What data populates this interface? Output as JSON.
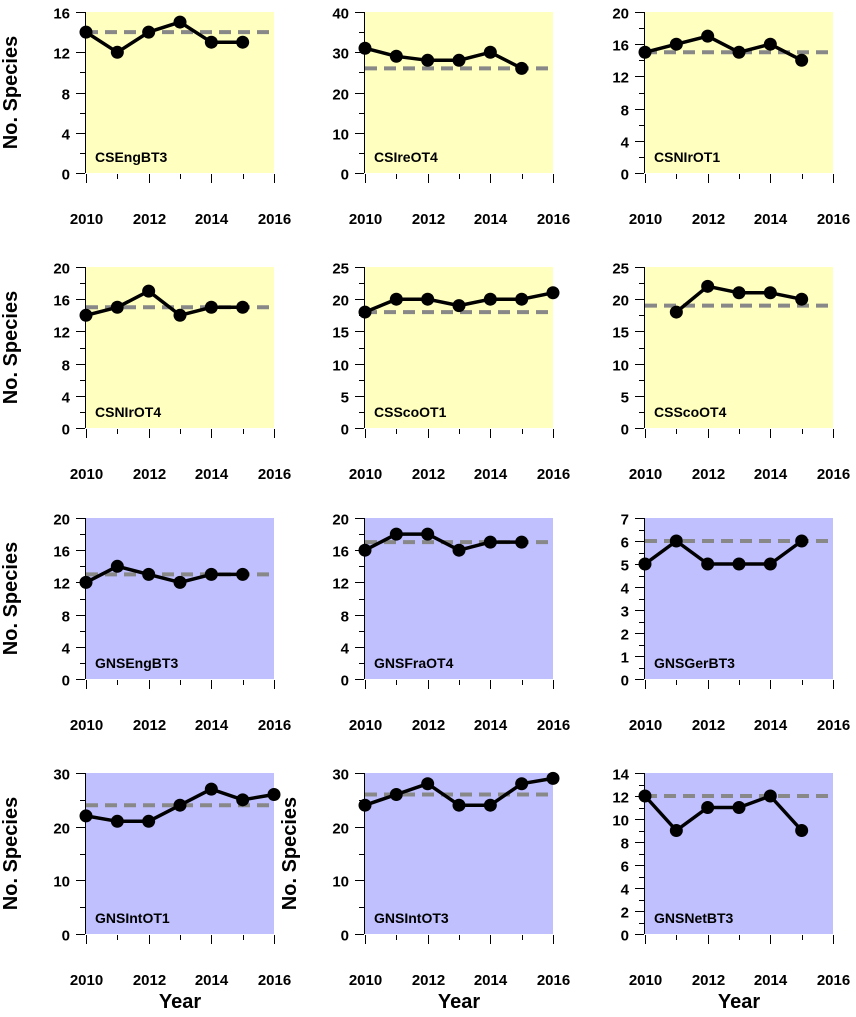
{
  "figure": {
    "ylabel": "No. Species",
    "xlabel": "Year",
    "colors": {
      "cs_background": "#ffffc0",
      "gns_background": "#c0c0ff",
      "series_line": "#000000",
      "reference_line": "#888888"
    }
  },
  "chart_data": [
    {
      "type": "line",
      "title": "CSEngBT3",
      "group": "CS",
      "xlim": [
        2010,
        2016
      ],
      "ylim": [
        0,
        16
      ],
      "yticks": [
        0,
        4,
        8,
        12,
        16
      ],
      "ytick_minor": 2,
      "xticks": [
        2010,
        2012,
        2014,
        2016
      ],
      "show_ylabel": true,
      "show_xlabel": false,
      "x": [
        2010,
        2011,
        2012,
        2013,
        2014,
        2015
      ],
      "y": [
        14,
        12,
        14,
        15,
        13,
        13
      ],
      "reference": 14
    },
    {
      "type": "line",
      "title": "CSIreOT4",
      "group": "CS",
      "xlim": [
        2010,
        2016
      ],
      "ylim": [
        0,
        40
      ],
      "yticks": [
        0,
        10,
        20,
        30,
        40
      ],
      "ytick_minor": 5,
      "xticks": [
        2010,
        2012,
        2014,
        2016
      ],
      "show_ylabel": false,
      "show_xlabel": false,
      "x": [
        2010,
        2011,
        2012,
        2013,
        2014,
        2015
      ],
      "y": [
        31,
        29,
        28,
        28,
        30,
        26
      ],
      "reference": 26
    },
    {
      "type": "line",
      "title": "CSNIrOT1",
      "group": "CS",
      "xlim": [
        2010,
        2016
      ],
      "ylim": [
        0,
        20
      ],
      "yticks": [
        0,
        4,
        8,
        12,
        16,
        20
      ],
      "ytick_minor": 2,
      "xticks": [
        2010,
        2012,
        2014,
        2016
      ],
      "show_ylabel": false,
      "show_xlabel": false,
      "x": [
        2010,
        2011,
        2012,
        2013,
        2014,
        2015
      ],
      "y": [
        15,
        16,
        17,
        15,
        16,
        14
      ],
      "reference": 15
    },
    {
      "type": "line",
      "title": "CSNIrOT4",
      "group": "CS",
      "xlim": [
        2010,
        2016
      ],
      "ylim": [
        0,
        20
      ],
      "yticks": [
        0,
        4,
        8,
        12,
        16,
        20
      ],
      "ytick_minor": 2,
      "xticks": [
        2010,
        2012,
        2014,
        2016
      ],
      "show_ylabel": true,
      "show_xlabel": false,
      "x": [
        2010,
        2011,
        2012,
        2013,
        2014,
        2015
      ],
      "y": [
        14,
        15,
        17,
        14,
        15,
        15
      ],
      "reference": 15
    },
    {
      "type": "line",
      "title": "CSScoOT1",
      "group": "CS",
      "xlim": [
        2010,
        2016
      ],
      "ylim": [
        0,
        25
      ],
      "yticks": [
        0,
        5,
        10,
        15,
        20,
        25
      ],
      "ytick_minor": 2.5,
      "xticks": [
        2010,
        2012,
        2014,
        2016
      ],
      "show_ylabel": false,
      "show_xlabel": false,
      "x": [
        2010,
        2011,
        2012,
        2013,
        2014,
        2015,
        2016
      ],
      "y": [
        18,
        20,
        20,
        19,
        20,
        20,
        21
      ],
      "reference": 18
    },
    {
      "type": "line",
      "title": "CSScoOT4",
      "group": "CS",
      "xlim": [
        2010,
        2016
      ],
      "ylim": [
        0,
        25
      ],
      "yticks": [
        0,
        5,
        10,
        15,
        20,
        25
      ],
      "ytick_minor": 2.5,
      "xticks": [
        2010,
        2012,
        2014,
        2016
      ],
      "show_ylabel": false,
      "show_xlabel": false,
      "x": [
        2011,
        2012,
        2013,
        2014,
        2015
      ],
      "y": [
        18,
        22,
        21,
        21,
        20
      ],
      "reference": 19
    },
    {
      "type": "line",
      "title": "GNSEngBT3",
      "group": "GNS",
      "xlim": [
        2010,
        2016
      ],
      "ylim": [
        0,
        20
      ],
      "yticks": [
        0,
        4,
        8,
        12,
        16,
        20
      ],
      "ytick_minor": 2,
      "xticks": [
        2010,
        2012,
        2014,
        2016
      ],
      "show_ylabel": true,
      "show_xlabel": false,
      "x": [
        2010,
        2011,
        2012,
        2013,
        2014,
        2015
      ],
      "y": [
        12,
        14,
        13,
        12,
        13,
        13
      ],
      "reference": 13
    },
    {
      "type": "line",
      "title": "GNSFraOT4",
      "group": "GNS",
      "xlim": [
        2010,
        2016
      ],
      "ylim": [
        0,
        20
      ],
      "yticks": [
        0,
        4,
        8,
        12,
        16,
        20
      ],
      "ytick_minor": 2,
      "xticks": [
        2010,
        2012,
        2014,
        2016
      ],
      "show_ylabel": false,
      "show_xlabel": false,
      "x": [
        2010,
        2011,
        2012,
        2013,
        2014,
        2015
      ],
      "y": [
        16,
        18,
        18,
        16,
        17,
        17
      ],
      "reference": 17
    },
    {
      "type": "line",
      "title": "GNSGerBT3",
      "group": "GNS",
      "xlim": [
        2010,
        2016
      ],
      "ylim": [
        0,
        7
      ],
      "yticks": [
        0,
        1,
        2,
        3,
        4,
        5,
        6,
        7
      ],
      "ytick_minor": 0.5,
      "xticks": [
        2010,
        2012,
        2014,
        2016
      ],
      "show_ylabel": false,
      "show_xlabel": false,
      "x": [
        2010,
        2011,
        2012,
        2013,
        2014,
        2015
      ],
      "y": [
        5,
        6,
        5,
        5,
        5,
        6
      ],
      "reference": 6
    },
    {
      "type": "line",
      "title": "GNSIntOT1",
      "group": "GNS",
      "xlim": [
        2010,
        2016
      ],
      "ylim": [
        0,
        30
      ],
      "yticks": [
        0,
        10,
        20,
        30
      ],
      "ytick_minor": 5,
      "xticks": [
        2010,
        2012,
        2014,
        2016
      ],
      "show_ylabel": true,
      "show_xlabel": true,
      "x": [
        2010,
        2011,
        2012,
        2013,
        2014,
        2015,
        2016
      ],
      "y": [
        22,
        21,
        21,
        24,
        27,
        25,
        26
      ],
      "reference": 24
    },
    {
      "type": "line",
      "title": "GNSIntOT3",
      "group": "GNS",
      "xlim": [
        2010,
        2016
      ],
      "ylim": [
        0,
        30
      ],
      "yticks": [
        0,
        10,
        20,
        30
      ],
      "ytick_minor": 5,
      "xticks": [
        2010,
        2012,
        2014,
        2016
      ],
      "show_ylabel": true,
      "show_xlabel": true,
      "x": [
        2010,
        2011,
        2012,
        2013,
        2014,
        2015,
        2016
      ],
      "y": [
        24,
        26,
        28,
        24,
        24,
        28,
        29
      ],
      "reference": 26
    },
    {
      "type": "line",
      "title": "GNSNetBT3",
      "group": "GNS",
      "xlim": [
        2010,
        2016
      ],
      "ylim": [
        0,
        14
      ],
      "yticks": [
        0,
        2,
        4,
        6,
        8,
        10,
        12,
        14
      ],
      "ytick_minor": 1,
      "xticks": [
        2010,
        2012,
        2014,
        2016
      ],
      "show_ylabel": false,
      "show_xlabel": true,
      "x": [
        2010,
        2011,
        2012,
        2013,
        2014,
        2015
      ],
      "y": [
        12,
        9,
        11,
        11,
        12,
        9
      ],
      "reference": 12
    }
  ]
}
